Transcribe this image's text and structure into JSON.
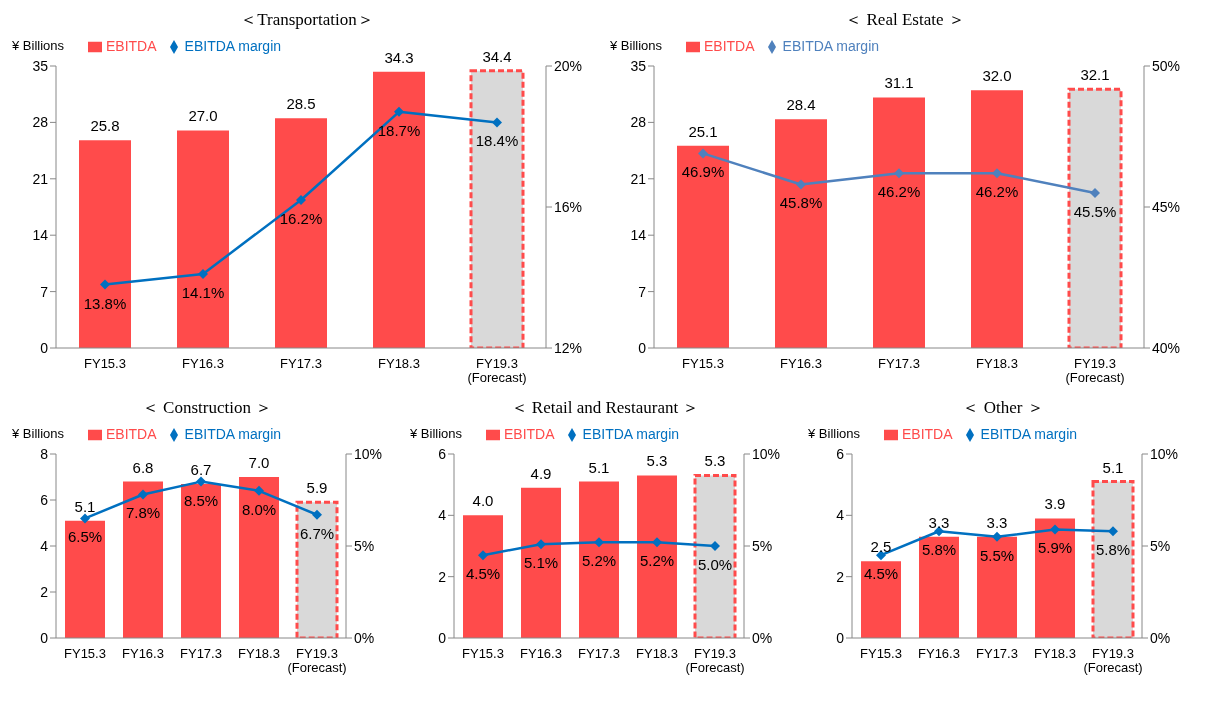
{
  "chart_data": [
    {
      "type": "bar",
      "title": "＜Transportation＞",
      "ylabel": "¥ Billions",
      "categories": [
        "FY15.3",
        "FY16.3",
        "FY17.3",
        "FY18.3",
        "FY19.3\n(Forecast)"
      ],
      "legend": "top left",
      "marker": "diamond",
      "ylim": [
        0,
        35
      ],
      "yticks": [
        0,
        7,
        14,
        21,
        28,
        35
      ],
      "y2lim": [
        12,
        20
      ],
      "y2ticks": [
        {
          "value": 12,
          "label": "12%"
        },
        {
          "value": 16,
          "label": "16%"
        },
        {
          "value": 20,
          "label": "20%"
        }
      ],
      "series": [
        {
          "name": "EBITDA",
          "color": "#ff4b4b",
          "colors": [
            "#ff4b4b",
            "#ff4b4b",
            "#ff4b4b",
            "#ff4b4b",
            "#d9d9d9"
          ],
          "values": [
            25.8,
            27.0,
            28.5,
            34.3,
            34.4
          ],
          "value_labels": [
            "25.8",
            "27.0",
            "28.5",
            "34.3",
            "34.4"
          ]
        },
        {
          "name": "EBITDA margin",
          "type": "line",
          "axis": "y2",
          "color": "#0070c0",
          "values": [
            13.8,
            14.1,
            16.2,
            18.7,
            18.4
          ],
          "value_labels": [
            "13.8%",
            "14.1%",
            "16.2%",
            "18.7%",
            "18.4%"
          ]
        }
      ]
    },
    {
      "type": "bar",
      "title": "＜ Real Estate ＞",
      "ylabel": "¥ Billions",
      "categories": [
        "FY15.3",
        "FY16.3",
        "FY17.3",
        "FY18.3",
        "FY19.3\n(Forecast)"
      ],
      "legend": "top left",
      "marker": "diamond",
      "ylim": [
        0,
        35
      ],
      "yticks": [
        0,
        7,
        14,
        21,
        28,
        35
      ],
      "y2lim": [
        40,
        50
      ],
      "y2ticks": [
        {
          "value": 40,
          "label": "40%"
        },
        {
          "value": 45,
          "label": "45%"
        },
        {
          "value": 50,
          "label": "50%"
        }
      ],
      "series": [
        {
          "name": "EBITDA",
          "color": "#ff4b4b",
          "colors": [
            "#ff4b4b",
            "#ff4b4b",
            "#ff4b4b",
            "#ff4b4b",
            "#d9d9d9"
          ],
          "values": [
            25.1,
            28.4,
            31.1,
            32.0,
            32.1
          ],
          "value_labels": [
            "25.1",
            "28.4",
            "31.1",
            "32.0",
            "32.1"
          ]
        },
        {
          "name": "EBITDA margin",
          "type": "line",
          "axis": "y2",
          "color": "#4f81bd",
          "values": [
            46.9,
            45.8,
            46.2,
            46.2,
            45.5
          ],
          "value_labels": [
            "46.9%",
            "45.8%",
            "46.2%",
            "46.2%",
            "45.5%"
          ]
        }
      ]
    },
    {
      "type": "bar",
      "title": "＜ Construction ＞",
      "ylabel": "¥ Billions",
      "categories": [
        "FY15.3",
        "FY16.3",
        "FY17.3",
        "FY18.3",
        "FY19.3\n(Forecast)"
      ],
      "legend": "top left",
      "marker": "diamond",
      "ylim": [
        0,
        8
      ],
      "yticks": [
        0,
        2,
        4,
        6,
        8
      ],
      "y2lim": [
        0,
        10
      ],
      "y2ticks": [
        {
          "value": 0,
          "label": "0%"
        },
        {
          "value": 5,
          "label": "5%"
        },
        {
          "value": 10,
          "label": "10%"
        }
      ],
      "series": [
        {
          "name": "EBITDA",
          "color": "#ff4b4b",
          "colors": [
            "#ff4b4b",
            "#ff4b4b",
            "#ff4b4b",
            "#ff4b4b",
            "#d9d9d9"
          ],
          "values": [
            5.1,
            6.8,
            6.7,
            7.0,
            5.9
          ],
          "value_labels": [
            "5.1",
            "6.8",
            "6.7",
            "7.0",
            "5.9"
          ]
        },
        {
          "name": "EBITDA margin",
          "type": "line",
          "axis": "y2",
          "color": "#0070c0",
          "values": [
            6.5,
            7.8,
            8.5,
            8.0,
            6.7
          ],
          "value_labels": [
            "6.5%",
            "7.8%",
            "8.5%",
            "8.0%",
            "6.7%"
          ]
        }
      ]
    },
    {
      "type": "bar",
      "title": "＜ Retail and Restaurant ＞",
      "ylabel": "¥ Billions",
      "categories": [
        "FY15.3",
        "FY16.3",
        "FY17.3",
        "FY18.3",
        "FY19.3\n(Forecast)"
      ],
      "legend": "top left",
      "marker": "diamond",
      "ylim": [
        0,
        6
      ],
      "yticks": [
        0,
        2,
        4,
        6
      ],
      "y2lim": [
        0,
        10
      ],
      "y2ticks": [
        {
          "value": 0,
          "label": "0%"
        },
        {
          "value": 5,
          "label": "5%"
        },
        {
          "value": 10,
          "label": "10%"
        }
      ],
      "series": [
        {
          "name": "EBITDA",
          "color": "#ff4b4b",
          "colors": [
            "#ff4b4b",
            "#ff4b4b",
            "#ff4b4b",
            "#ff4b4b",
            "#d9d9d9"
          ],
          "values": [
            4.0,
            4.9,
            5.1,
            5.3,
            5.3
          ],
          "value_labels": [
            "4.0",
            "4.9",
            "5.1",
            "5.3",
            "5.3"
          ]
        },
        {
          "name": "EBITDA margin",
          "type": "line",
          "axis": "y2",
          "color": "#0070c0",
          "values": [
            4.5,
            5.1,
            5.2,
            5.2,
            5.0
          ],
          "value_labels": [
            "4.5%",
            "5.1%",
            "5.2%",
            "5.2%",
            "5.0%"
          ]
        }
      ]
    },
    {
      "type": "bar",
      "title": "＜ Other ＞",
      "ylabel": "¥ Billions",
      "categories": [
        "FY15.3",
        "FY16.3",
        "FY17.3",
        "FY18.3",
        "FY19.3\n(Forecast)"
      ],
      "legend": "top left",
      "marker": "diamond",
      "ylim": [
        0,
        6
      ],
      "yticks": [
        0,
        2,
        4,
        6
      ],
      "y2lim": [
        0,
        10
      ],
      "y2ticks": [
        {
          "value": 0,
          "label": "0%"
        },
        {
          "value": 5,
          "label": "5%"
        },
        {
          "value": 10,
          "label": "10%"
        }
      ],
      "series": [
        {
          "name": "EBITDA",
          "color": "#ff4b4b",
          "colors": [
            "#ff4b4b",
            "#ff4b4b",
            "#ff4b4b",
            "#ff4b4b",
            "#d9d9d9"
          ],
          "values": [
            2.5,
            3.3,
            3.3,
            3.9,
            5.1
          ],
          "value_labels": [
            "2.5",
            "3.3",
            "3.3",
            "3.9",
            "5.1"
          ]
        },
        {
          "name": "EBITDA margin",
          "type": "line",
          "axis": "y2",
          "color": "#0070c0",
          "values": [
            4.5,
            5.8,
            5.5,
            5.9,
            5.8
          ],
          "value_labels": [
            "4.5%",
            "5.8%",
            "5.5%",
            "5.9%",
            "5.8%"
          ]
        }
      ]
    }
  ]
}
